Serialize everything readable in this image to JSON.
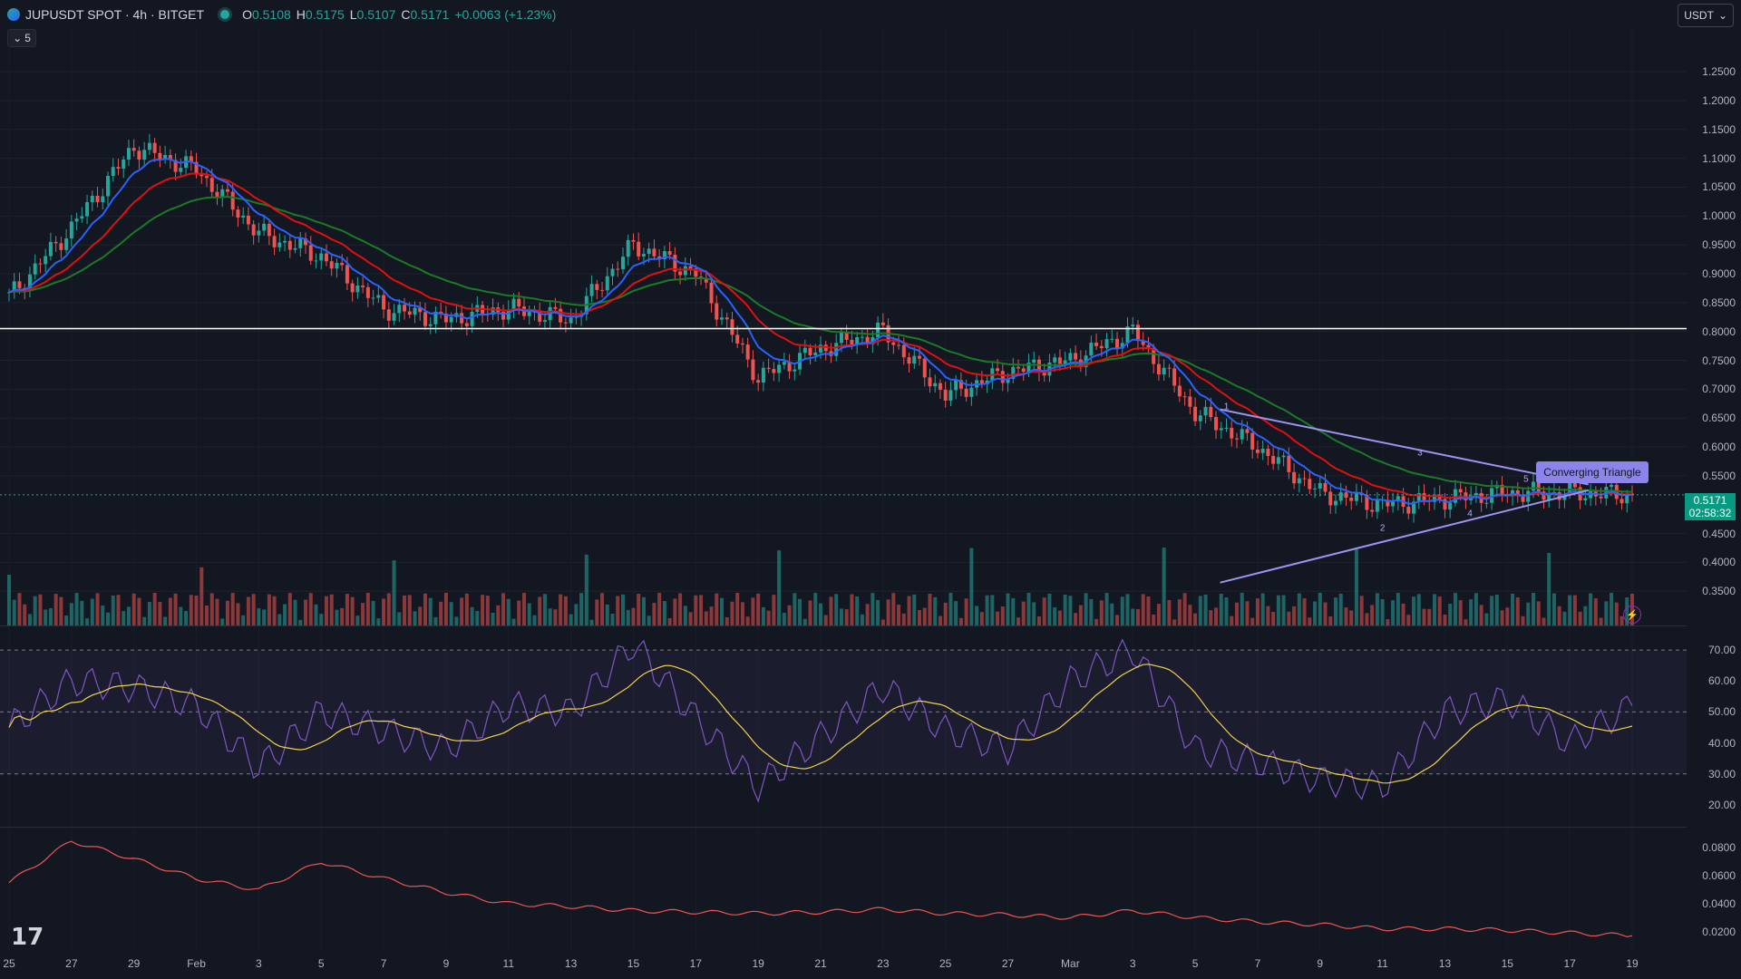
{
  "header": {
    "symbol": "JUPUSDT SPOT · 4h · BITGET",
    "o_label": "O",
    "o_value": "0.5108",
    "h_label": "H",
    "h_value": "0.5175",
    "l_label": "L",
    "l_value": "0.5107",
    "c_label": "C",
    "c_value": "0.5171",
    "change": "+0.0063 (+1.23%)"
  },
  "collapse_count": "5",
  "currency": "USDT",
  "price_axis": [
    "1.2500",
    "1.2000",
    "1.1500",
    "1.1000",
    "1.0500",
    "1.0000",
    "0.9500",
    "0.9000",
    "0.8500",
    "0.8000",
    "0.7500",
    "0.7000",
    "0.6500",
    "0.6000",
    "0.5500",
    "0.4500",
    "0.4000",
    "0.3500"
  ],
  "current_price": "0.5171",
  "countdown": "02:58:32",
  "rsi_axis": [
    "70.00",
    "60.00",
    "50.00",
    "40.00",
    "30.00",
    "20.00"
  ],
  "osc_axis": [
    "0.0800",
    "0.0600",
    "0.0400",
    "0.0200"
  ],
  "dates": [
    "25",
    "27",
    "29",
    "Feb",
    "3",
    "5",
    "7",
    "9",
    "11",
    "13",
    "15",
    "17",
    "19",
    "21",
    "23",
    "25",
    "27",
    "Mar",
    "3",
    "5",
    "7",
    "9",
    "11",
    "13",
    "15",
    "17",
    "19"
  ],
  "pattern_label": "Converging Triangle",
  "pattern_points": [
    "1",
    "2",
    "3",
    "4",
    "5"
  ],
  "colors": {
    "up": "#26a69a",
    "down": "#ef5350",
    "ema_fast": "#2962ff",
    "ema_mid": "#e01010",
    "ema_slow": "#1b7a26",
    "rsi": "#7e57c2",
    "rsi_ma": "#f0d34a",
    "horizontal_line": "#ffffff"
  },
  "chart_data": [
    {
      "type": "candlestick",
      "title": "JUPUSDT SPOT · 4h · BITGET",
      "ylim": [
        0.33,
        1.28
      ],
      "x": [
        "25",
        "27",
        "29",
        "Feb",
        "3",
        "5",
        "7",
        "9",
        "11",
        "13",
        "15",
        "17",
        "19",
        "21",
        "23",
        "25",
        "27",
        "Mar",
        "3",
        "5",
        "7",
        "9",
        "11",
        "13",
        "15",
        "17",
        "19"
      ],
      "close": [
        0.86,
        0.98,
        1.12,
        1.08,
        0.97,
        0.93,
        0.84,
        0.82,
        0.84,
        0.82,
        0.95,
        0.9,
        0.72,
        0.77,
        0.8,
        0.69,
        0.73,
        0.75,
        0.8,
        0.66,
        0.6,
        0.52,
        0.5,
        0.51,
        0.52,
        0.52,
        0.5171
      ],
      "horizontal_line": 0.805
    },
    {
      "type": "line",
      "name": "RSI",
      "ylim": [
        15,
        75
      ],
      "x": [
        "25",
        "27",
        "29",
        "Feb",
        "3",
        "5",
        "7",
        "9",
        "11",
        "13",
        "15",
        "17",
        "19",
        "21",
        "23",
        "25",
        "27",
        "Mar",
        "3",
        "5",
        "7",
        "9",
        "11",
        "13",
        "15",
        "17",
        "19"
      ],
      "values": [
        45,
        60,
        58,
        52,
        32,
        50,
        44,
        38,
        52,
        50,
        72,
        48,
        26,
        42,
        58,
        44,
        38,
        60,
        70,
        38,
        34,
        28,
        26,
        50,
        54,
        40,
        52
      ],
      "reference_lines": [
        70,
        50,
        30
      ]
    },
    {
      "type": "line",
      "ylim": [
        0.012,
        0.09
      ],
      "x": [
        "25",
        "27",
        "29",
        "Feb",
        "3",
        "5",
        "7",
        "9",
        "11",
        "13",
        "15",
        "17",
        "19",
        "21",
        "23",
        "25",
        "27",
        "Mar",
        "3",
        "5",
        "7",
        "9",
        "11",
        "13",
        "15",
        "17",
        "19"
      ],
      "values": [
        0.055,
        0.085,
        0.072,
        0.058,
        0.05,
        0.07,
        0.058,
        0.048,
        0.04,
        0.038,
        0.035,
        0.034,
        0.033,
        0.034,
        0.036,
        0.033,
        0.032,
        0.03,
        0.035,
        0.03,
        0.027,
        0.025,
        0.022,
        0.022,
        0.021,
        0.019,
        0.017
      ]
    }
  ]
}
